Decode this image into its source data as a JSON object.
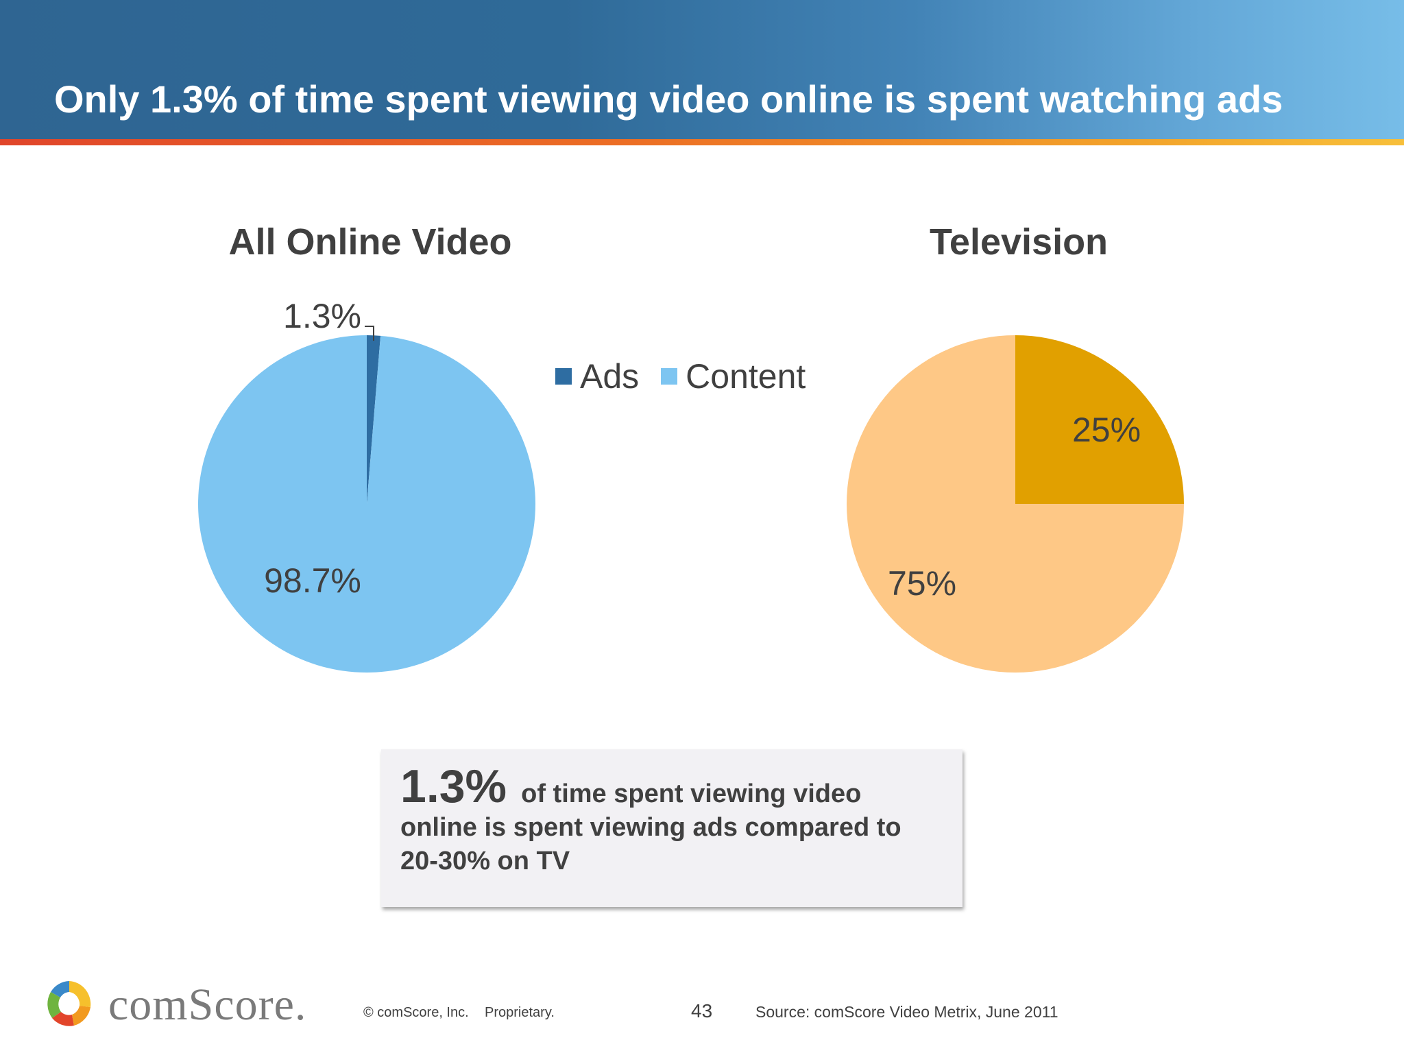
{
  "slide": {
    "title": "Only 1.3% of time spent viewing video online is spent watching ads"
  },
  "legend": [
    {
      "label": "Ads",
      "color": "#2e6da2"
    },
    {
      "label": "Content",
      "color": "#7dc5f1"
    }
  ],
  "chart_data": [
    {
      "type": "pie",
      "title": "All Online Video",
      "slices": [
        {
          "label": "Ads",
          "value": 1.3,
          "display": "1.3%",
          "color": "#2e6da2"
        },
        {
          "label": "Content",
          "value": 98.7,
          "display": "98.7%",
          "color": "#7dc5f1"
        }
      ]
    },
    {
      "type": "pie",
      "title": "Television",
      "slices": [
        {
          "label": "Ads",
          "value": 25,
          "display": "25%",
          "color": "#e1a000"
        },
        {
          "label": "Content",
          "value": 75,
          "display": "75%",
          "color": "#fec886"
        }
      ]
    }
  ],
  "callout": {
    "big": "1.3%",
    "line1": "of time spent viewing video",
    "line2": "online is spent viewing ads compared to",
    "line3": "20-30% on TV"
  },
  "footer": {
    "brand": "comScore.",
    "copyright": "© comScore, Inc.",
    "proprietary": "Proprietary.",
    "page": "43",
    "source": "Source: comScore Video Metrix, June 2011"
  }
}
